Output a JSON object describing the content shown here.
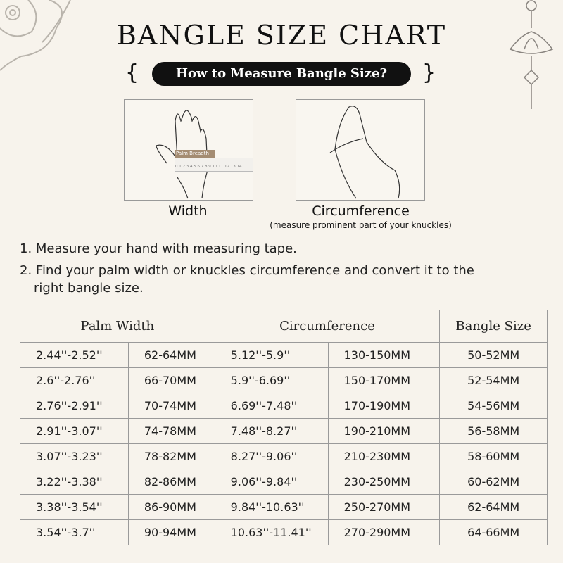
{
  "title": "BANGLE SIZE CHART",
  "subtitle": "How to Measure Bangle Size?",
  "illustrations": [
    {
      "caption": "Width",
      "label": "Palm Breadth",
      "ruler": "0 1 2 3 4 5 6 7 8 9 10 11 12 13 14"
    },
    {
      "caption": "Circumference",
      "note": "(measure prominent part of your knuckles)"
    }
  ],
  "steps": [
    "1. Measure your hand with measuring tape.",
    "2. Find your palm width or knuckles circumference and convert it to the",
    "right bangle size."
  ],
  "table": {
    "headers": [
      "Palm Width",
      "Circumference",
      "Bangle Size"
    ],
    "rows": [
      [
        "2.44''-2.52''",
        "62-64MM",
        "5.12''-5.9''",
        "130-150MM",
        "50-52MM"
      ],
      [
        "2.6''-2.76''",
        "66-70MM",
        "5.9''-6.69''",
        "150-170MM",
        "52-54MM"
      ],
      [
        "2.76''-2.91''",
        "70-74MM",
        "6.69''-7.48''",
        "170-190MM",
        "54-56MM"
      ],
      [
        "2.91''-3.07''",
        "74-78MM",
        "7.48''-8.27''",
        "190-210MM",
        "56-58MM"
      ],
      [
        "3.07''-3.23''",
        "78-82MM",
        "8.27''-9.06''",
        "210-230MM",
        "58-60MM"
      ],
      [
        "3.22''-3.38''",
        "82-86MM",
        "9.06''-9.84''",
        "230-250MM",
        "60-62MM"
      ],
      [
        "3.38''-3.54''",
        "86-90MM",
        "9.84''-10.63''",
        "250-270MM",
        "62-64MM"
      ],
      [
        "3.54''-3.7''",
        "90-94MM",
        "10.63''-11.41''",
        "270-290MM",
        "64-66MM"
      ]
    ]
  },
  "colors": {
    "background": "#f7f3ec",
    "pill": "#111111",
    "label": "#a48c72"
  }
}
